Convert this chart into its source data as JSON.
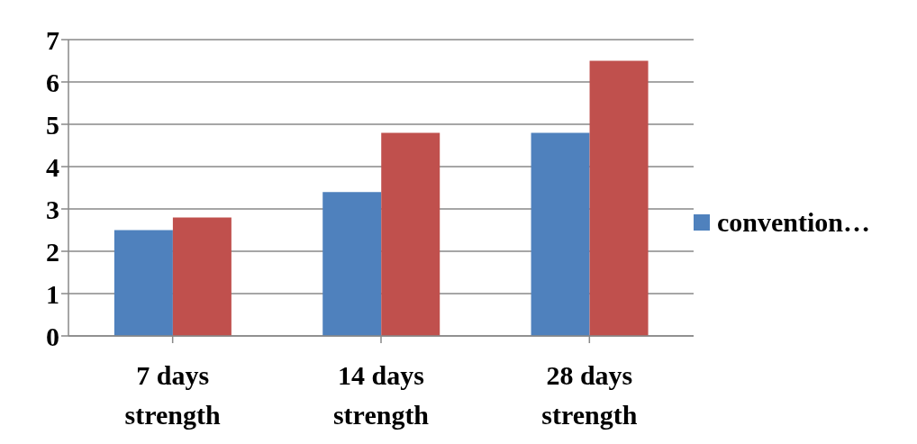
{
  "chart_data": {
    "type": "bar",
    "categories": [
      "7 days strength",
      "14 days strength",
      "28 days strength"
    ],
    "series": [
      {
        "name": "convention…",
        "color": "#4f81bd",
        "values": [
          2.5,
          3.4,
          4.8
        ]
      },
      {
        "color": "#c0504d",
        "values": [
          2.8,
          4.8,
          6.5
        ]
      }
    ],
    "ylim": [
      0,
      7
    ],
    "yticks": [
      0,
      1,
      2,
      3,
      4,
      5,
      6,
      7
    ],
    "grid": "y",
    "legend": "right"
  }
}
